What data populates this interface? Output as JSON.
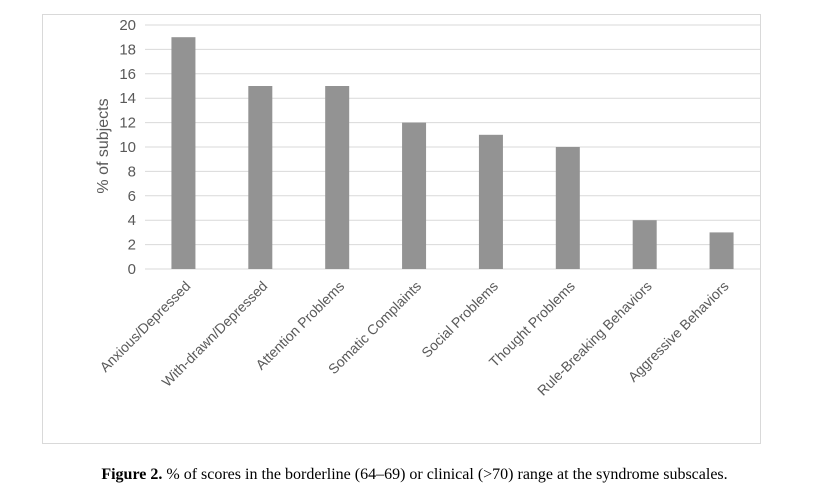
{
  "chart_data": {
    "type": "bar",
    "categories": [
      "Anxious/Depressed",
      "With-drawn/Depressed",
      "Attention Problems",
      "Somatic Complaints",
      "Social Problems",
      "Thought Problems",
      "Rule-Breaking Behaviors",
      "Aggressive Behaviors"
    ],
    "values": [
      19,
      15,
      15,
      12,
      11,
      10,
      4,
      3
    ],
    "ylabel": "% of subjects",
    "xlabel": "",
    "ylim": [
      0,
      20
    ],
    "yticks": [
      0,
      2,
      4,
      6,
      8,
      10,
      12,
      14,
      16,
      18,
      20
    ],
    "grid": true,
    "bar_color": "#939393",
    "grid_color": "#d9d9d9"
  },
  "caption": {
    "label": "Figure 2.",
    "text": " % of scores in the borderline (64–69) or clinical (>70) range at the syndrome subscales."
  }
}
